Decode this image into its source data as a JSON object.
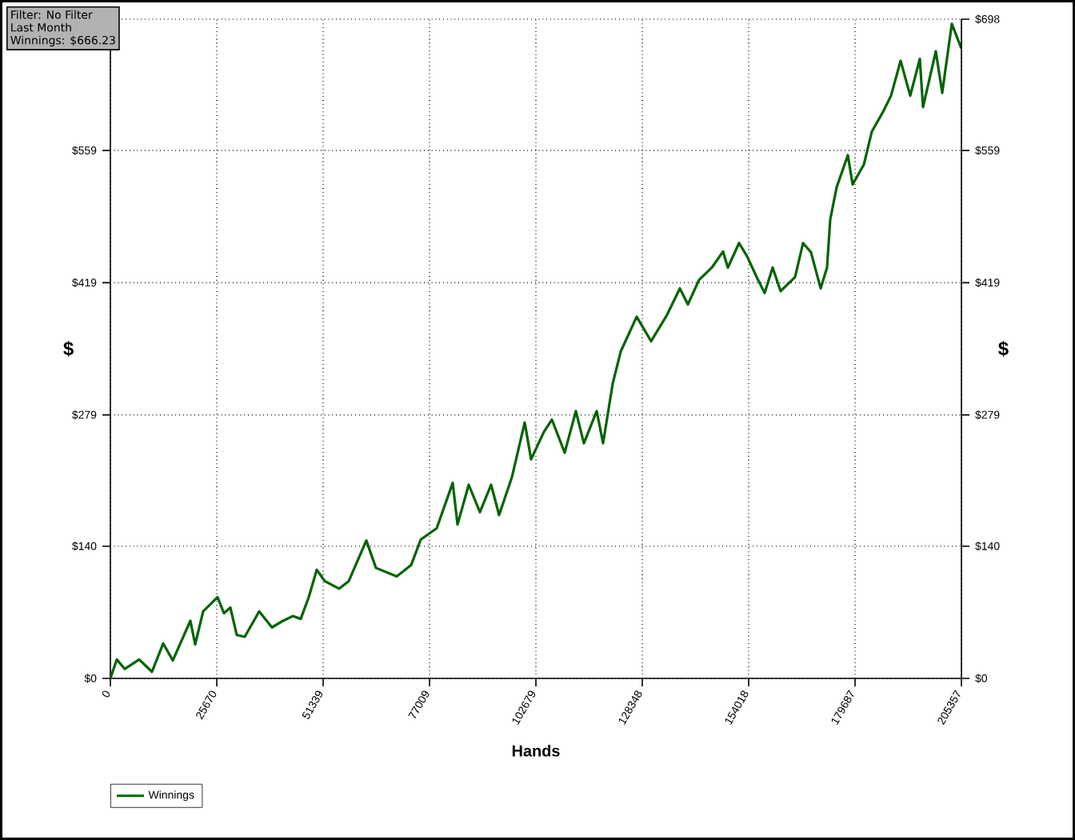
{
  "chart_data": {
    "type": "line",
    "xlabel": "Hands",
    "ylabel": "$",
    "y2label": "$",
    "annotations": [
      "Filter: No Filter",
      "Last Month",
      "Winnings: $666.23"
    ],
    "xlim": [
      0,
      205357
    ],
    "xticks": [
      0,
      25670,
      51339,
      77009,
      102679,
      128348,
      154018,
      179687,
      205357
    ],
    "ylim": [
      0,
      698
    ],
    "yticks": [
      {
        "value": 0,
        "label": "$0"
      },
      {
        "value": 140,
        "label": "$140"
      },
      {
        "value": 279,
        "label": "$279"
      },
      {
        "value": 419,
        "label": "$419"
      },
      {
        "value": 559,
        "label": "$559"
      },
      {
        "value": 698,
        "label": null
      }
    ],
    "y2lim": [
      0,
      698
    ],
    "y2ticks": [
      {
        "value": 0,
        "label": "$0"
      },
      {
        "value": 140,
        "label": "$140"
      },
      {
        "value": 279,
        "label": "$279"
      },
      {
        "value": 419,
        "label": "$419"
      },
      {
        "value": 559,
        "label": "$559"
      },
      {
        "value": 698,
        "label": "$698"
      }
    ],
    "grid": true,
    "legend": "bottom left",
    "marker": "none",
    "line_style": "solid",
    "series": [
      {
        "name": "Winnings",
        "color": "#006400",
        "x": [
          0,
          1544,
          3474,
          6948,
          10036,
          12738,
          15054,
          19300,
          20458,
          22388,
          25862,
          27406,
          28950,
          30494,
          32424,
          35898,
          38986,
          41688,
          44004,
          45934,
          47864,
          49794,
          51724,
          55198,
          57514,
          61760,
          64076,
          69094,
          72568,
          74884,
          78744,
          82604,
          83762,
          86464,
          89166,
          91868,
          93798,
          96886,
          99974,
          101518,
          104606,
          106536,
          109624,
          112326,
          114256,
          117344,
          118888,
          121204,
          123134,
          126994,
          130468,
          134328,
          137416,
          139346,
          142048,
          145136,
          147838,
          148996,
          151698,
          153628,
          155944,
          157874,
          159804,
          161734,
          165208,
          167138,
          169068,
          171384,
          172928,
          173700,
          175244,
          177946,
          179104,
          181806,
          183736,
          186438,
          188368,
          190684,
          193000,
          195316,
          196088,
          199176,
          200720,
          203036,
          205357
        ],
        "values": [
          0,
          20,
          10,
          20,
          7,
          37,
          19,
          61,
          36,
          71,
          86,
          69,
          75,
          46,
          44,
          71,
          54,
          61,
          66,
          63,
          86,
          115,
          103,
          95,
          103,
          146,
          117,
          108,
          120,
          147,
          159,
          207,
          163,
          205,
          176,
          205,
          173,
          213,
          271,
          232,
          261,
          274,
          239,
          283,
          249,
          283,
          249,
          312,
          346,
          383,
          357,
          385,
          413,
          396,
          422,
          435,
          452,
          435,
          461,
          447,
          425,
          408,
          435,
          410,
          425,
          461,
          451,
          413,
          435,
          486,
          520,
          554,
          523,
          544,
          579,
          600,
          617,
          654,
          617,
          656,
          605,
          664,
          620,
          693,
          667
        ]
      }
    ]
  }
}
